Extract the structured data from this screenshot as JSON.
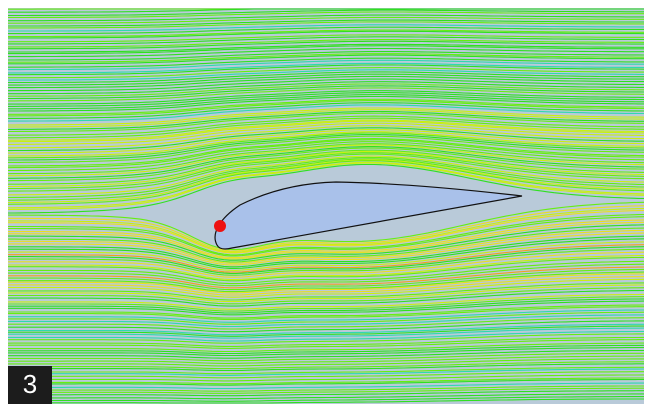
{
  "label": "3"
}
